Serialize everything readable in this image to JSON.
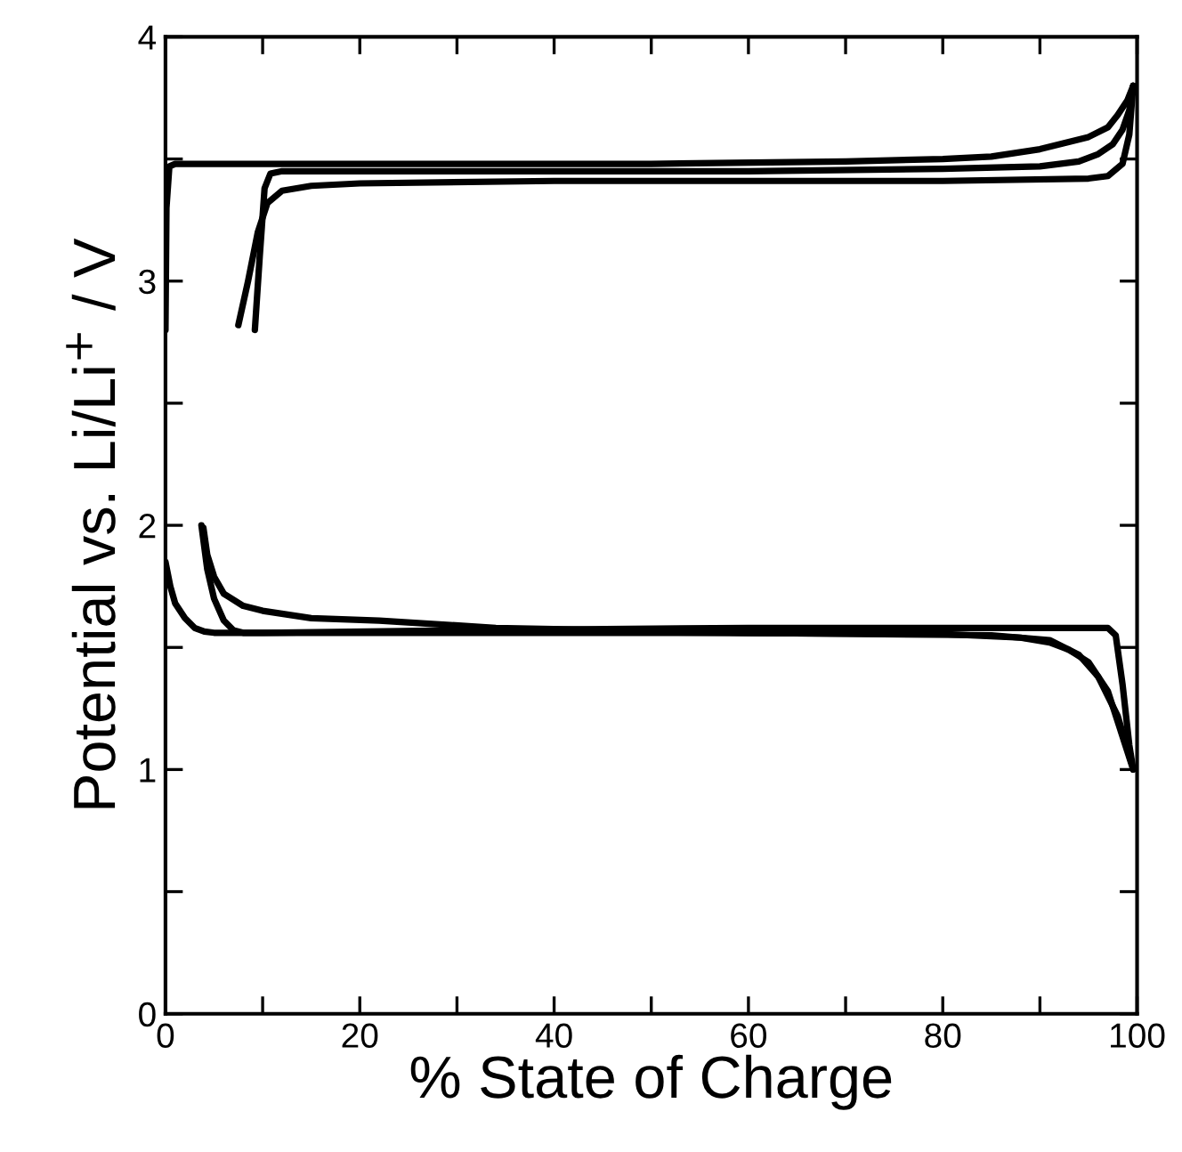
{
  "chart_data": {
    "type": "line",
    "xlabel": "% State of Charge",
    "ylabel": "Potential vs. Li/Li$^{+}$ / V",
    "xlim": [
      0,
      100
    ],
    "ylim": [
      0,
      4
    ],
    "xticks": [
      0,
      {
        "value": 10,
        "label": null
      },
      20,
      {
        "value": 30,
        "label": null
      },
      40,
      {
        "value": 50,
        "label": null
      },
      60,
      {
        "value": 70,
        "label": null
      },
      80,
      {
        "value": 90,
        "label": null
      },
      100
    ],
    "yticks": [
      0,
      {
        "value": 0.5,
        "label": null
      },
      1,
      {
        "value": 1.5,
        "label": null
      },
      2,
      {
        "value": 2.5,
        "label": null
      },
      3,
      {
        "value": 3.5,
        "label": null
      },
      4
    ],
    "grid": false,
    "marker": "none",
    "line_style": "solid",
    "series": [
      {
        "color": "#000000",
        "x": [
          0,
          0.1,
          0.4,
          1,
          5,
          20,
          50,
          70,
          80,
          85,
          90,
          95,
          97,
          98,
          99,
          99.6
        ],
        "values": [
          2.8,
          3.3,
          3.47,
          3.48,
          3.48,
          3.48,
          3.48,
          3.49,
          3.5,
          3.51,
          3.54,
          3.59,
          3.63,
          3.68,
          3.74,
          3.8
        ]
      },
      {
        "color": "#000000",
        "x": [
          7.5,
          8.5,
          9.5,
          10.5,
          12,
          15,
          20,
          40,
          60,
          80,
          95,
          97,
          98.5,
          99.2,
          99.6
        ],
        "values": [
          2.82,
          3.0,
          3.2,
          3.32,
          3.37,
          3.39,
          3.4,
          3.41,
          3.41,
          3.41,
          3.42,
          3.43,
          3.48,
          3.6,
          3.8
        ]
      },
      {
        "color": "#000000",
        "x": [
          9.2,
          9.7,
          10.2,
          10.8,
          12,
          20,
          40,
          60,
          80,
          90,
          94,
          96,
          97.5,
          98.5,
          99.2,
          99.6
        ],
        "values": [
          2.8,
          3.1,
          3.38,
          3.44,
          3.45,
          3.45,
          3.45,
          3.45,
          3.46,
          3.47,
          3.49,
          3.52,
          3.56,
          3.62,
          3.7,
          3.8
        ]
      },
      {
        "color": "#000000",
        "x": [
          0,
          0.5,
          1,
          2,
          3,
          4,
          5,
          20,
          50,
          80,
          88,
          91,
          93,
          95,
          97,
          99.6
        ],
        "values": [
          1.85,
          1.75,
          1.68,
          1.62,
          1.58,
          1.565,
          1.56,
          1.56,
          1.56,
          1.555,
          1.54,
          1.52,
          1.49,
          1.44,
          1.32,
          1.0
        ]
      },
      {
        "color": "#000000",
        "x": [
          3.7,
          4.3,
          5,
          6,
          7,
          8,
          10,
          30,
          60,
          90,
          97,
          97.8,
          98.5,
          99.2,
          99.6
        ],
        "values": [
          2.0,
          1.82,
          1.7,
          1.61,
          1.57,
          1.56,
          1.56,
          1.57,
          1.58,
          1.58,
          1.58,
          1.55,
          1.35,
          1.1,
          1.0
        ]
      },
      {
        "color": "#000000",
        "x": [
          3.9,
          4.3,
          5,
          6,
          8,
          10,
          15,
          22,
          34,
          60,
          85,
          91,
          94,
          96,
          98,
          99.4
        ],
        "values": [
          1.99,
          1.88,
          1.79,
          1.72,
          1.67,
          1.65,
          1.62,
          1.61,
          1.58,
          1.56,
          1.55,
          1.53,
          1.47,
          1.38,
          1.22,
          1.03
        ]
      }
    ]
  }
}
